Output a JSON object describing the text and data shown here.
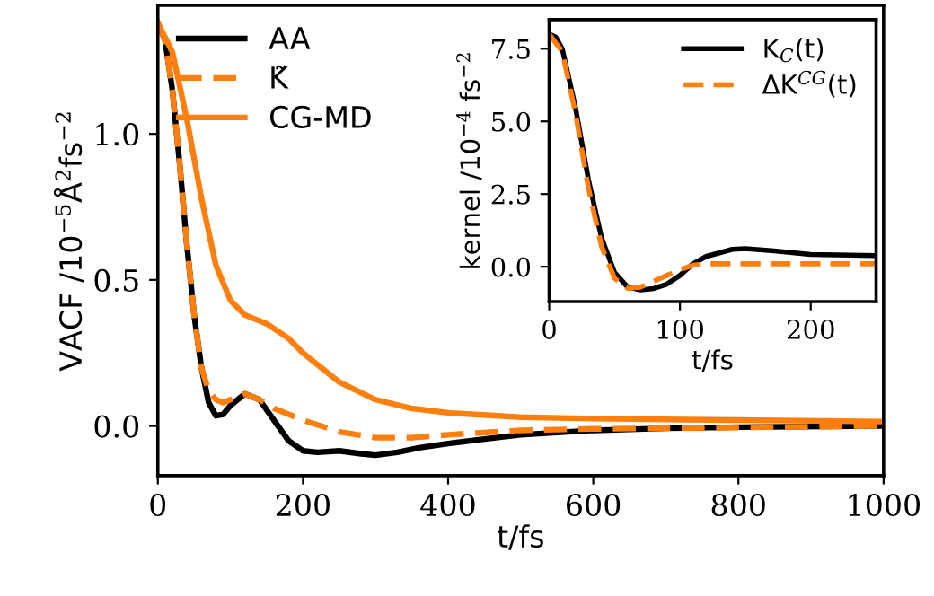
{
  "chart_data": [
    {
      "type": "line",
      "xlabel": "t/fs",
      "ylabel": "VACF /10$^{−5}$Å$^{2}$fs$^{−2}$",
      "xlim": [
        0,
        1000
      ],
      "xticks": [
        0,
        200,
        400,
        600,
        800,
        1000
      ],
      "ylim": [
        -0.17,
        1.44
      ],
      "yticks": [
        {
          "value": 0,
          "label": "0.0"
        },
        0.5,
        {
          "value": 1,
          "label": "1.0"
        }
      ],
      "grid": false,
      "legend": "top left",
      "marker": "none",
      "series": [
        {
          "name": "AA",
          "color": "#000000",
          "line_style": "solid",
          "x": [
            0,
            10,
            20,
            30,
            40,
            50,
            60,
            70,
            80,
            90,
            100,
            120,
            140,
            160,
            180,
            200,
            220,
            250,
            280,
            300,
            330,
            360,
            400,
            450,
            500,
            600,
            700,
            800,
            1000
          ],
          "values": [
            1.38,
            1.32,
            1.15,
            0.9,
            0.62,
            0.38,
            0.2,
            0.08,
            0.035,
            0.04,
            0.07,
            0.11,
            0.09,
            0.02,
            -0.05,
            -0.085,
            -0.09,
            -0.085,
            -0.095,
            -0.1,
            -0.09,
            -0.075,
            -0.06,
            -0.045,
            -0.03,
            -0.015,
            -0.008,
            -0.004,
            0
          ]
        },
        {
          "name": "K̃",
          "color": "#ff7f0e",
          "line_style": "dashed",
          "x": [
            0,
            10,
            20,
            30,
            40,
            50,
            60,
            70,
            80,
            90,
            100,
            120,
            140,
            160,
            200,
            250,
            300,
            350,
            400,
            500,
            600,
            800,
            1000
          ],
          "values": [
            1.38,
            1.32,
            1.15,
            0.9,
            0.62,
            0.38,
            0.2,
            0.12,
            0.09,
            0.08,
            0.09,
            0.11,
            0.09,
            0.06,
            0.02,
            -0.02,
            -0.04,
            -0.04,
            -0.03,
            -0.015,
            -0.01,
            -0.005,
            0
          ]
        },
        {
          "name": "CG-MD",
          "color": "#ff7f0e",
          "line_style": "solid",
          "x": [
            0,
            20,
            40,
            60,
            80,
            100,
            120,
            150,
            180,
            200,
            250,
            300,
            350,
            400,
            500,
            600,
            800,
            1000
          ],
          "values": [
            1.38,
            1.28,
            1.05,
            0.78,
            0.55,
            0.43,
            0.38,
            0.35,
            0.3,
            0.25,
            0.15,
            0.09,
            0.06,
            0.045,
            0.03,
            0.025,
            0.02,
            0.015
          ]
        }
      ]
    },
    {
      "type": "line",
      "xlabel": "t/fs",
      "ylabel": "kernel /10$^{−4}$ fs$^{−2}$",
      "xlim": [
        0,
        250
      ],
      "xticks": [
        0,
        100,
        200
      ],
      "ylim": [
        -1.2,
        8.5
      ],
      "yticks": [
        {
          "value": 0,
          "label": "0.0"
        },
        2.5,
        {
          "value": 5,
          "label": "5.0"
        },
        7.5
      ],
      "grid": false,
      "legend": "top right",
      "marker": "none",
      "series": [
        {
          "name": "K$_{C}$(t)",
          "color": "#000000",
          "line_style": "solid",
          "x": [
            0,
            5,
            10,
            20,
            30,
            40,
            50,
            60,
            70,
            80,
            90,
            100,
            110,
            120,
            140,
            150,
            170,
            200,
            250
          ],
          "values": [
            8.0,
            7.9,
            7.5,
            5.5,
            3.0,
            1.0,
            -0.2,
            -0.7,
            -0.8,
            -0.75,
            -0.6,
            -0.3,
            0.1,
            0.35,
            0.6,
            0.62,
            0.55,
            0.42,
            0.38
          ]
        },
        {
          "name": "ΔK$^{CG}$(t)",
          "color": "#ff7f0e",
          "line_style": "dashed",
          "x": [
            0,
            10,
            20,
            30,
            40,
            50,
            60,
            70,
            80,
            90,
            100,
            110,
            120,
            150,
            250
          ],
          "values": [
            8.0,
            7.4,
            5.3,
            2.7,
            0.7,
            -0.4,
            -0.75,
            -0.7,
            -0.5,
            -0.3,
            -0.1,
            0.05,
            0.1,
            0.1,
            0.1
          ]
        }
      ]
    }
  ]
}
